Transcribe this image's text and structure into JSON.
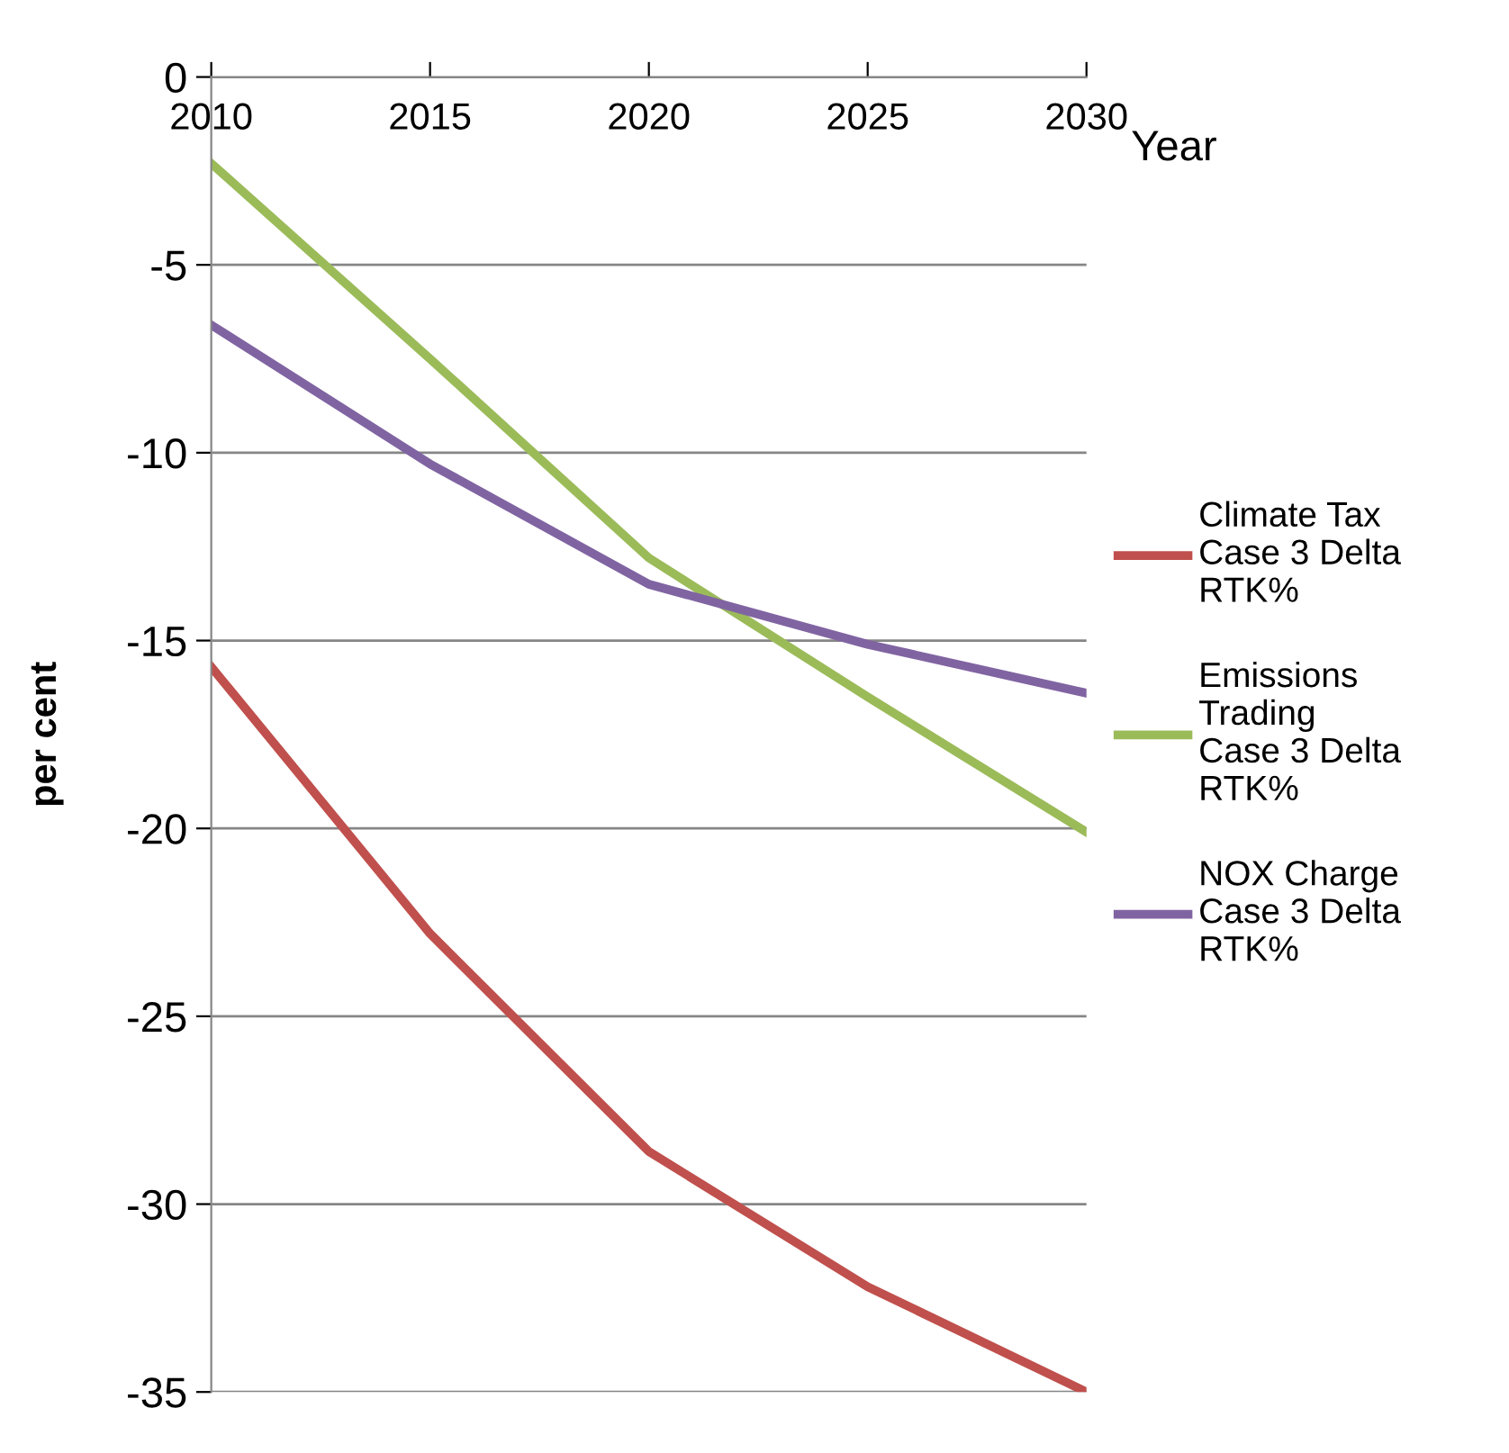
{
  "chart_data": {
    "type": "line",
    "xlabel": "Year",
    "ylabel": "per cent",
    "x": [
      2010,
      2015,
      2020,
      2025,
      2030
    ],
    "series": [
      {
        "name": "Climate Tax\nCase 3 Delta\nRTK%",
        "color": "#c0504d",
        "values": [
          -15.7,
          -22.8,
          -28.6,
          -32.2,
          -35.0
        ]
      },
      {
        "name": "Emissions\nTrading\nCase 3 Delta\nRTK%",
        "color": "#9bbb59",
        "values": [
          -2.3,
          -7.5,
          -12.8,
          -16.5,
          -20.1
        ]
      },
      {
        "name": "NOX Charge\nCase 3 Delta\nRTK%",
        "color": "#8064a2",
        "values": [
          -6.6,
          -10.3,
          -13.5,
          -15.1,
          -16.4
        ]
      }
    ],
    "xlim": [
      2010,
      2030
    ],
    "xticks": [
      2010,
      2015,
      2020,
      2025,
      2030
    ],
    "ylim": [
      -35,
      0
    ],
    "yticks": [
      -35,
      -30,
      -25,
      -20,
      -15,
      -10,
      -5,
      0
    ],
    "grid": "y",
    "legend": "right",
    "marker": "none",
    "line_style": "solid"
  }
}
